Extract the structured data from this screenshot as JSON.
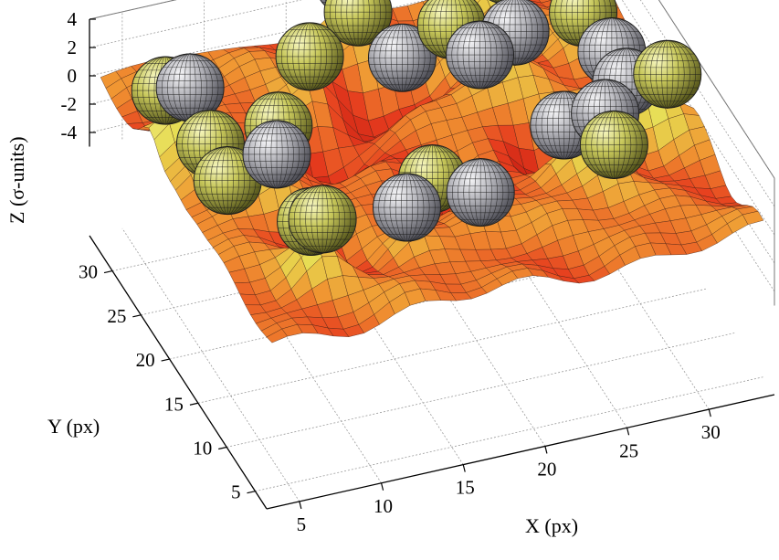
{
  "chart_data": {
    "type": "surface3d",
    "title": "",
    "xlabel": "X (px)",
    "ylabel": "Y (px)",
    "zlabel": "Z (σ-units)",
    "xlim": [
      3,
      34
    ],
    "ylim": [
      3,
      34
    ],
    "zlim": [
      -5,
      4
    ],
    "x_ticks": [
      5,
      10,
      15,
      20,
      25,
      30
    ],
    "y_ticks": [
      5,
      10,
      15,
      20,
      25,
      30
    ],
    "z_ticks": [
      -4,
      -2,
      0,
      2,
      4
    ],
    "x_tick_labels": [
      "5",
      "10",
      "15",
      "20",
      "25",
      "30"
    ],
    "y_tick_labels": [
      "5",
      "10",
      "15",
      "20",
      "25",
      "30"
    ],
    "z_tick_labels": [
      "-4",
      "-2",
      "0",
      "2",
      "4"
    ],
    "grid": true,
    "surface": {
      "description": "height field of the image intensity",
      "colormap": "hot",
      "wells": [
        {
          "x": 13,
          "y": 22,
          "depth": -4
        },
        {
          "x": 18.5,
          "y": 16,
          "depth": -4.5
        },
        {
          "x": 17,
          "y": 26,
          "depth": -3.5
        },
        {
          "x": 21,
          "y": 27,
          "depth": -3
        },
        {
          "x": 10,
          "y": 11,
          "depth": -2
        },
        {
          "x": 25,
          "y": 18,
          "depth": -3
        }
      ]
    },
    "series": [
      {
        "kind": "spheres",
        "color": "#b9b951",
        "points": [
          {
            "x": 4.5,
            "y": 25
          },
          {
            "x": 5.5,
            "y": 20
          },
          {
            "x": 5.5,
            "y": 17
          },
          {
            "x": 8.5,
            "y": 11
          },
          {
            "x": 8.5,
            "y": 9
          },
          {
            "x": 10,
            "y": 21
          },
          {
            "x": 14,
            "y": 27
          },
          {
            "x": 18,
            "y": 30
          },
          {
            "x": 18,
            "y": 17
          },
          {
            "x": 23,
            "y": 28
          },
          {
            "x": 27,
            "y": 30
          },
          {
            "x": 30,
            "y": 25
          },
          {
            "x": 27,
            "y": 11
          },
          {
            "x": 32,
            "y": 16
          }
        ]
      },
      {
        "kind": "spheres",
        "color": "#a6a6a6",
        "points": [
          {
            "x": 6,
            "y": 25
          },
          {
            "x": 8.5,
            "y": 17
          },
          {
            "x": 14,
            "y": 10
          },
          {
            "x": 18.5,
            "y": 33
          },
          {
            "x": 20,
            "y": 28
          },
          {
            "x": 23,
            "y": 23
          },
          {
            "x": 25.5,
            "y": 24
          },
          {
            "x": 30,
            "y": 20
          },
          {
            "x": 25,
            "y": 14
          },
          {
            "x": 27.5,
            "y": 14
          },
          {
            "x": 29.5,
            "y": 16
          },
          {
            "x": 18.5,
            "y": 10
          }
        ]
      }
    ]
  }
}
